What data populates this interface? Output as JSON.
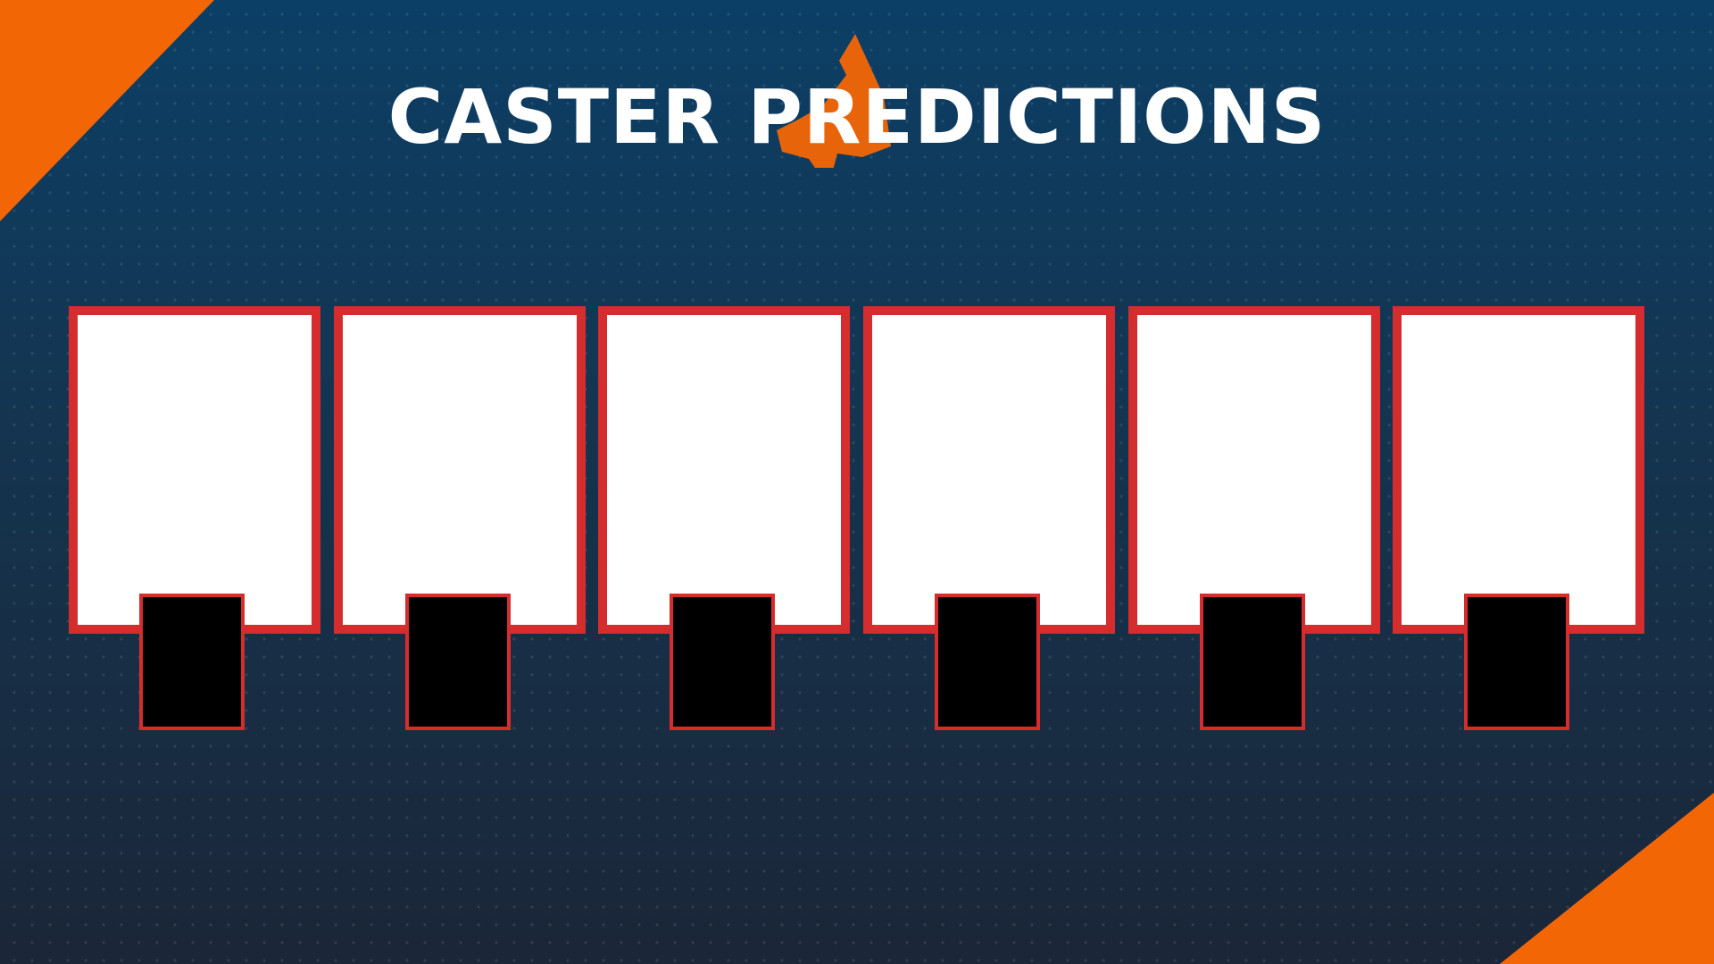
{
  "title": "CASTER PREDICTIONS",
  "colors": {
    "background_top": "#0c3f66",
    "background_bottom": "#1b2638",
    "accent": "#f36606",
    "card_border": "#d52d2e",
    "card_fill": "#ffffff",
    "badge_fill": "#000000"
  },
  "decorations": {
    "logo": "orange-fox-head-logo-icon"
  },
  "cards": [
    {
      "slot": 1
    },
    {
      "slot": 2
    },
    {
      "slot": 3
    },
    {
      "slot": 4
    },
    {
      "slot": 5
    },
    {
      "slot": 6
    }
  ]
}
